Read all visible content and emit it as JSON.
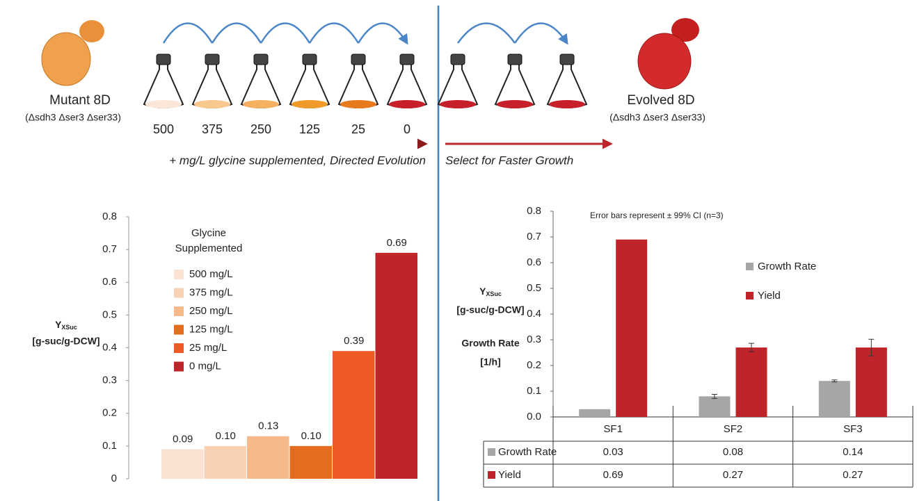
{
  "diagram": {
    "start_label": "Mutant 8D",
    "start_genotype": "(Δsdh3 Δser3 Δser33)",
    "end_label": "Evolved 8D",
    "end_genotype": "(Δsdh3 Δser3 Δser33)",
    "flask_labels": [
      "500",
      "375",
      "250",
      "125",
      "25",
      "0"
    ],
    "left_caption": "+ mg/L glycine supplemented, Directed Evolution",
    "right_caption": "Select for Faster Growth"
  },
  "chart_data": [
    {
      "type": "bar",
      "ylabel": {
        "text": "Y",
        "subscript": "XSuc",
        "line2": "[g-suc/g-DCW]"
      },
      "legend_title": [
        "Glycine",
        "Supplemented"
      ],
      "categories": [
        "500 mg/L",
        "375 mg/L",
        "250 mg/L",
        "125 mg/L",
        "25 mg/L",
        "0 mg/L"
      ],
      "colors": [
        "#fbe3d3",
        "#f9d2b5",
        "#f5b98b",
        "#e46c1f",
        "#ee5a24",
        "#c0242b"
      ],
      "values": [
        0.09,
        0.1,
        0.13,
        0.1,
        0.39,
        0.69
      ],
      "value_labels": [
        "0.09",
        "0.10",
        "0.13",
        "0.10",
        "0.39",
        "0.69"
      ],
      "ylim": [
        0,
        0.8
      ],
      "yticks": [
        0,
        0.1,
        0.2,
        0.3,
        0.4,
        0.5,
        0.6,
        0.7,
        0.8
      ]
    },
    {
      "type": "grouped_bar",
      "annotation": "Error bars represent ± 99% CI (n=3)",
      "ylabel": {
        "text": "Y",
        "subscript": "XSuc",
        "line2": "[g-suc/g-DCW]"
      },
      "ylabel2": [
        "Growth Rate",
        "[1/h]"
      ],
      "categories": [
        "SF1",
        "SF2",
        "SF3"
      ],
      "series": [
        {
          "name": "Growth Rate",
          "color": "#a6a6a6",
          "values": [
            0.03,
            0.08,
            0.14
          ],
          "errors": [
            null,
            0.008,
            0.004
          ]
        },
        {
          "name": "Yield",
          "color": "#c0242b",
          "values": [
            0.69,
            0.27,
            0.27
          ],
          "errors": [
            null,
            0.016,
            0.032
          ]
        }
      ],
      "ylim": [
        0,
        0.8
      ],
      "yticks": [
        {
          "value": 0,
          "label": "0.0"
        },
        0.1,
        0.2,
        0.3,
        0.4,
        0.5,
        0.6,
        0.7,
        0.8
      ]
    }
  ]
}
